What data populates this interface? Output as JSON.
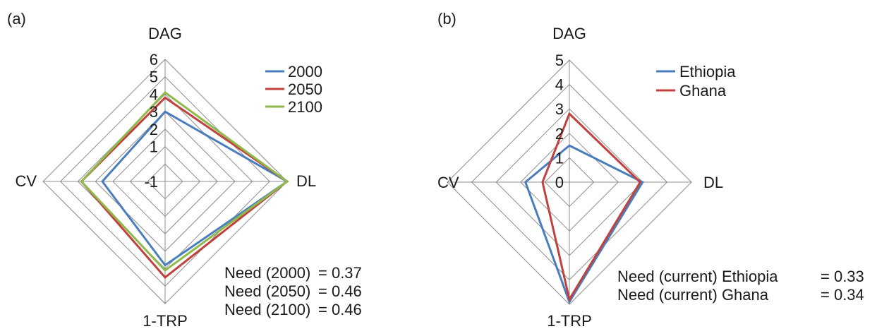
{
  "chart_data": [
    {
      "type": "radar",
      "panel_label": "(a)",
      "axes": [
        "DAG",
        "DL",
        "1-TRP",
        "CV"
      ],
      "tick_labels": [
        "-1",
        "1",
        "2",
        "3",
        "4",
        "5",
        "6"
      ],
      "range": [
        -1,
        6
      ],
      "series": [
        {
          "name": "2000",
          "color": "#4a7dbd",
          "values": [
            3.0,
            6.0,
            3.8,
            2.6
          ]
        },
        {
          "name": "2050",
          "color": "#c0413d",
          "values": [
            3.8,
            6.0,
            4.5,
            3.8
          ]
        },
        {
          "name": "2100",
          "color": "#8fba4b",
          "values": [
            4.1,
            6.0,
            4.1,
            3.8
          ]
        }
      ],
      "legend_position": "top-right",
      "annotations": [
        {
          "label": "Need (2000)",
          "value": "= 0.37"
        },
        {
          "label": "Need (2050)",
          "value": "= 0.46"
        },
        {
          "label": "Need (2100)",
          "value": "= 0.46"
        }
      ]
    },
    {
      "type": "radar",
      "panel_label": "(b)",
      "axes": [
        "DAG",
        "DL",
        "1-TRP",
        "CV"
      ],
      "tick_labels": [
        "0",
        "1",
        "2",
        "3",
        "4",
        "5"
      ],
      "range": [
        0,
        5
      ],
      "series": [
        {
          "name": "Ethiopia",
          "color": "#4a7dbd",
          "values": [
            1.5,
            3.0,
            4.9,
            1.8
          ]
        },
        {
          "name": "Ghana",
          "color": "#c0413d",
          "values": [
            2.8,
            2.9,
            4.8,
            1.1
          ]
        }
      ],
      "legend_position": "top-right",
      "annotations": [
        {
          "label": "Need (current) Ethiopia",
          "value": "= 0.33"
        },
        {
          "label": "Need (current) Ghana",
          "value": "= 0.34"
        }
      ]
    }
  ]
}
